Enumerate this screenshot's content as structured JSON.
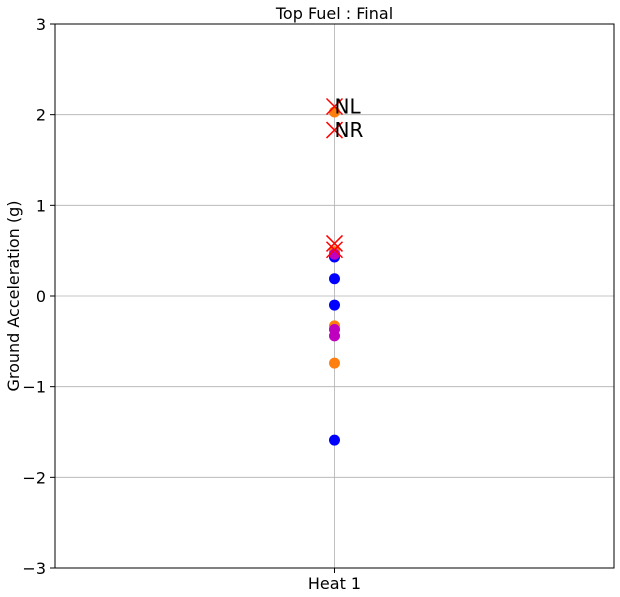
{
  "chart_data": {
    "type": "scatter",
    "title": "Top Fuel : Final",
    "xlabel": "",
    "ylabel": "Ground Acceleration (g)",
    "categories": [
      "Heat 1"
    ],
    "ylim": [
      -3,
      3
    ],
    "yticks": [
      -3,
      -2,
      -1,
      0,
      1,
      2,
      3
    ],
    "ytick_labels": [
      "−3",
      "−2",
      "−1",
      "0",
      "1",
      "2",
      "3"
    ],
    "grid": true,
    "colors": {
      "blue": "#0000ff",
      "orange": "#ff7f0e",
      "magenta": "#bf00bf",
      "red": "#ff0000"
    },
    "series": [
      {
        "color": "blue",
        "marker": "circle",
        "x": [
          "Heat 1",
          "Heat 1",
          "Heat 1",
          "Heat 1"
        ],
        "y": [
          0.43,
          0.19,
          -0.1,
          -1.59
        ]
      },
      {
        "color": "orange",
        "marker": "circle",
        "x": [
          "Heat 1",
          "Heat 1",
          "Heat 1",
          "Heat 1"
        ],
        "y": [
          2.03,
          0.49,
          -0.33,
          -0.74
        ]
      },
      {
        "color": "magenta",
        "marker": "circle",
        "x": [
          "Heat 1",
          "Heat 1",
          "Heat 1"
        ],
        "y": [
          0.46,
          -0.37,
          -0.44
        ]
      },
      {
        "color": "red",
        "marker": "x",
        "x": [
          "Heat 1",
          "Heat 1",
          "Heat 1",
          "Heat 1"
        ],
        "y": [
          2.09,
          1.83,
          0.58,
          0.51
        ]
      }
    ],
    "annotations": [
      {
        "text": "NL",
        "x": "Heat 1",
        "y": 2.09
      },
      {
        "text": "NR",
        "x": "Heat 1",
        "y": 1.83
      }
    ]
  }
}
